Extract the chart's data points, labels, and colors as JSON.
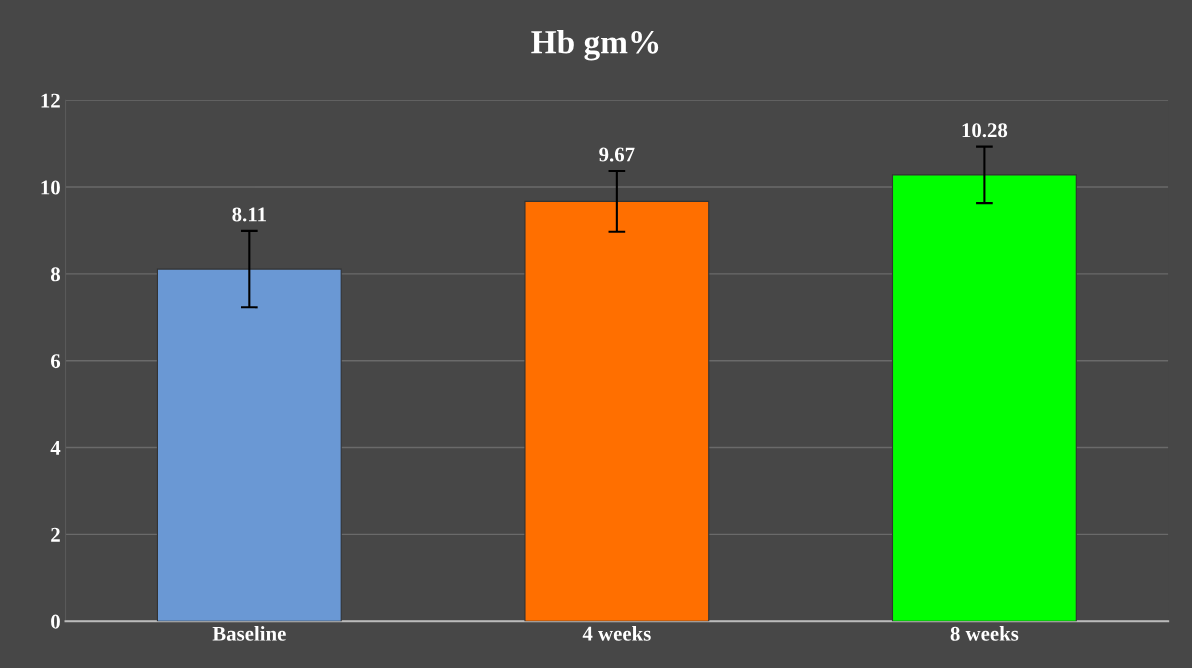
{
  "chart_data": {
    "type": "bar",
    "title": "Hb gm%",
    "categories": [
      "Baseline",
      "4 weeks",
      "8 weeks"
    ],
    "values": [
      8.11,
      9.67,
      10.28
    ],
    "colors": [
      "#6a98d4",
      "#ff6f00",
      "#00ff00"
    ],
    "errors": [
      0.88,
      0.7,
      0.65
    ],
    "ylim": [
      0,
      12
    ],
    "yticks": [
      0,
      2,
      4,
      6,
      8,
      10,
      12
    ],
    "grid": "y",
    "data_labels": true
  }
}
